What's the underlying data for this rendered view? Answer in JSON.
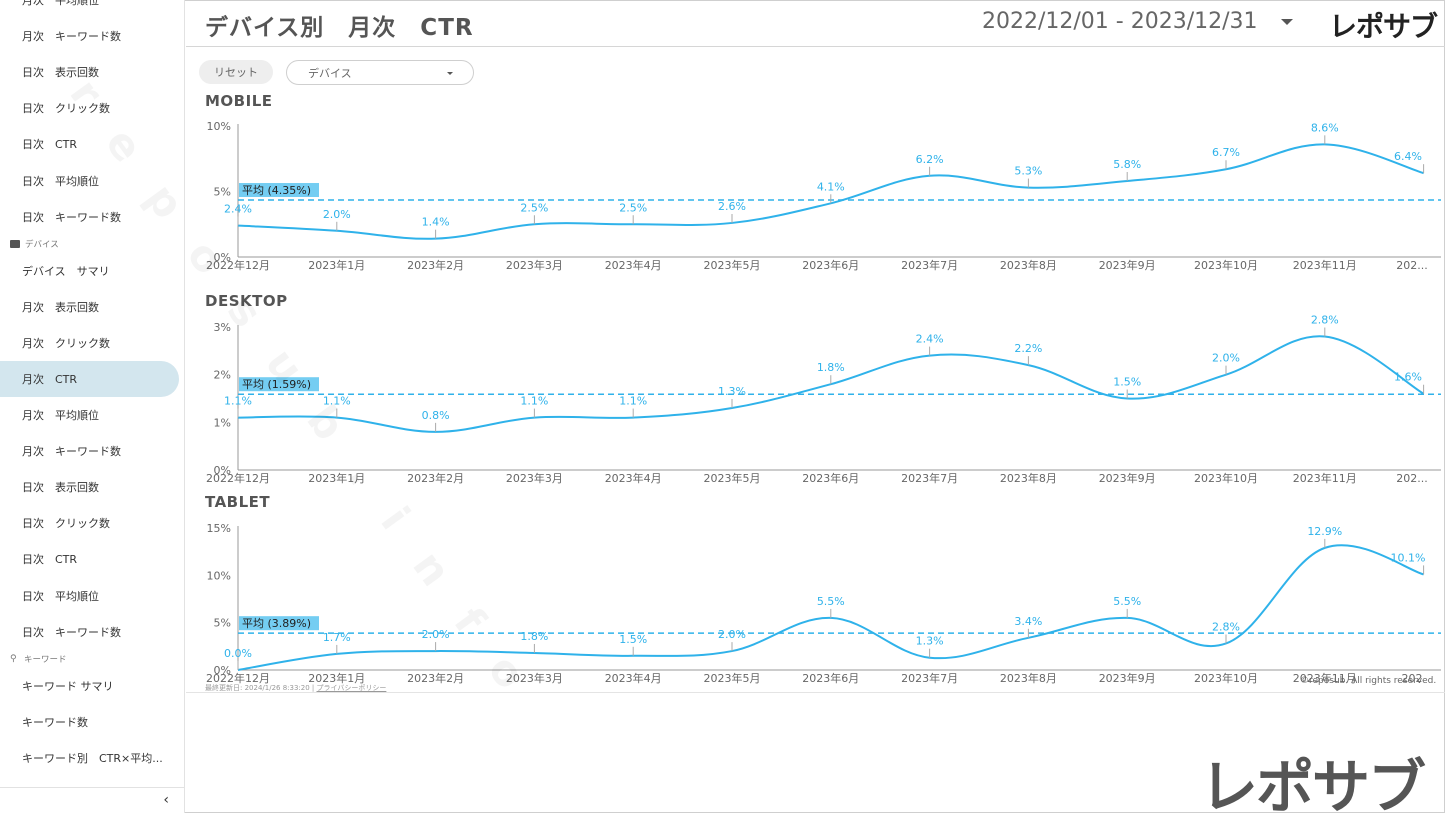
{
  "sidebar": {
    "items": [
      {
        "type": "item",
        "label": "月次　平均順位"
      },
      {
        "type": "item",
        "label": "月次　キーワード数"
      },
      {
        "type": "item",
        "label": "日次　表示回数"
      },
      {
        "type": "item",
        "label": "日次　クリック数"
      },
      {
        "type": "item",
        "label": "日次　CTR"
      },
      {
        "type": "item",
        "label": "日次　平均順位"
      },
      {
        "type": "item",
        "label": "日次　キーワード数"
      },
      {
        "type": "section",
        "label": "デバイス",
        "icon": "monitor-icon"
      },
      {
        "type": "item",
        "label": "デバイス　サマリ"
      },
      {
        "type": "item",
        "label": "月次　表示回数"
      },
      {
        "type": "item",
        "label": "月次　クリック数"
      },
      {
        "type": "item",
        "label": "月次　CTR",
        "active": true
      },
      {
        "type": "item",
        "label": "月次　平均順位"
      },
      {
        "type": "item",
        "label": "月次　キーワード数"
      },
      {
        "type": "item",
        "label": "日次　表示回数"
      },
      {
        "type": "item",
        "label": "日次　クリック数"
      },
      {
        "type": "item",
        "label": "日次　CTR"
      },
      {
        "type": "item",
        "label": "日次　平均順位"
      },
      {
        "type": "item",
        "label": "日次　キーワード数"
      },
      {
        "type": "section",
        "label": "キーワード",
        "icon": "key-icon"
      },
      {
        "type": "item",
        "label": "キーワード サマリ"
      },
      {
        "type": "item",
        "label": "キーワード数"
      },
      {
        "type": "item",
        "label": "キーワード別　CTR×平均..."
      }
    ],
    "collapse_glyph": "‹"
  },
  "header": {
    "title": "デバイス別　月次　CTR",
    "date_range": "2022/12/01 - 2023/12/31",
    "logo": "レポサブ"
  },
  "controls": {
    "reset_label": "リセット",
    "device_placeholder": "デバイス"
  },
  "watermark": "reposub.info",
  "footer": {
    "updated": "最終更新日: 2024/1/26 8:33:20",
    "privacy": "プライバシーポリシー",
    "copyright": "©reposub. All rights reserved."
  },
  "big_logo": "レポサブ",
  "colors": {
    "line": "#2fb2ea",
    "avg_bg": "#74cdf2",
    "axis": "#666666"
  },
  "chart_data": [
    {
      "type": "line",
      "title": "MOBILE",
      "categories": [
        "2022年12月",
        "2023年1月",
        "2023年2月",
        "2023年3月",
        "2023年4月",
        "2023年5月",
        "2023年6月",
        "2023年7月",
        "2023年8月",
        "2023年9月",
        "2023年10月",
        "2023年11月",
        "202..."
      ],
      "values": [
        2.4,
        2.0,
        1.4,
        2.5,
        2.5,
        2.6,
        4.1,
        6.2,
        5.3,
        5.8,
        6.7,
        8.6,
        6.4
      ],
      "labels": [
        "2.4%",
        "2.0%",
        "1.4%",
        "2.5%",
        "2.5%",
        "2.6%",
        "4.1%",
        "6.2%",
        "5.3%",
        "5.8%",
        "6.7%",
        "8.6%",
        "6.4%"
      ],
      "yticks": [
        "0%",
        "5%",
        "10%"
      ],
      "ylim": [
        0,
        10
      ],
      "average": 4.35,
      "average_label": "平均 (4.35%)"
    },
    {
      "type": "line",
      "title": "DESKTOP",
      "categories": [
        "2022年12月",
        "2023年1月",
        "2023年2月",
        "2023年3月",
        "2023年4月",
        "2023年5月",
        "2023年6月",
        "2023年7月",
        "2023年8月",
        "2023年9月",
        "2023年10月",
        "2023年11月",
        "202..."
      ],
      "values": [
        1.1,
        1.1,
        0.8,
        1.1,
        1.1,
        1.3,
        1.8,
        2.4,
        2.2,
        1.5,
        2.0,
        2.8,
        1.6
      ],
      "labels": [
        "1.1%",
        "1.1%",
        "0.8%",
        "1.1%",
        "1.1%",
        "1.3%",
        "1.8%",
        "2.4%",
        "2.2%",
        "1.5%",
        "2.0%",
        "2.8%",
        "1.6%"
      ],
      "yticks": [
        "0%",
        "1%",
        "2%",
        "3%"
      ],
      "ylim": [
        0,
        3
      ],
      "average": 1.59,
      "average_label": "平均 (1.59%)"
    },
    {
      "type": "line",
      "title": "TABLET",
      "categories": [
        "2022年12月",
        "2023年1月",
        "2023年2月",
        "2023年3月",
        "2023年4月",
        "2023年5月",
        "2023年6月",
        "2023年7月",
        "2023年8月",
        "2023年9月",
        "2023年10月",
        "2023年11月",
        "202"
      ],
      "values": [
        0.0,
        1.7,
        2.0,
        1.8,
        1.5,
        2.0,
        5.5,
        1.3,
        3.4,
        5.5,
        2.8,
        12.9,
        10.1
      ],
      "labels": [
        "0.0%",
        "1.7%",
        "2.0%",
        "1.8%",
        "1.5%",
        "2.0%",
        "5.5%",
        "1.3%",
        "3.4%",
        "5.5%",
        "2.8%",
        "12.9%",
        "10.1%"
      ],
      "yticks": [
        "0%",
        "5%",
        "10%",
        "15%"
      ],
      "ylim": [
        0,
        15
      ],
      "average": 3.89,
      "average_label": "平均 (3.89%)"
    }
  ]
}
